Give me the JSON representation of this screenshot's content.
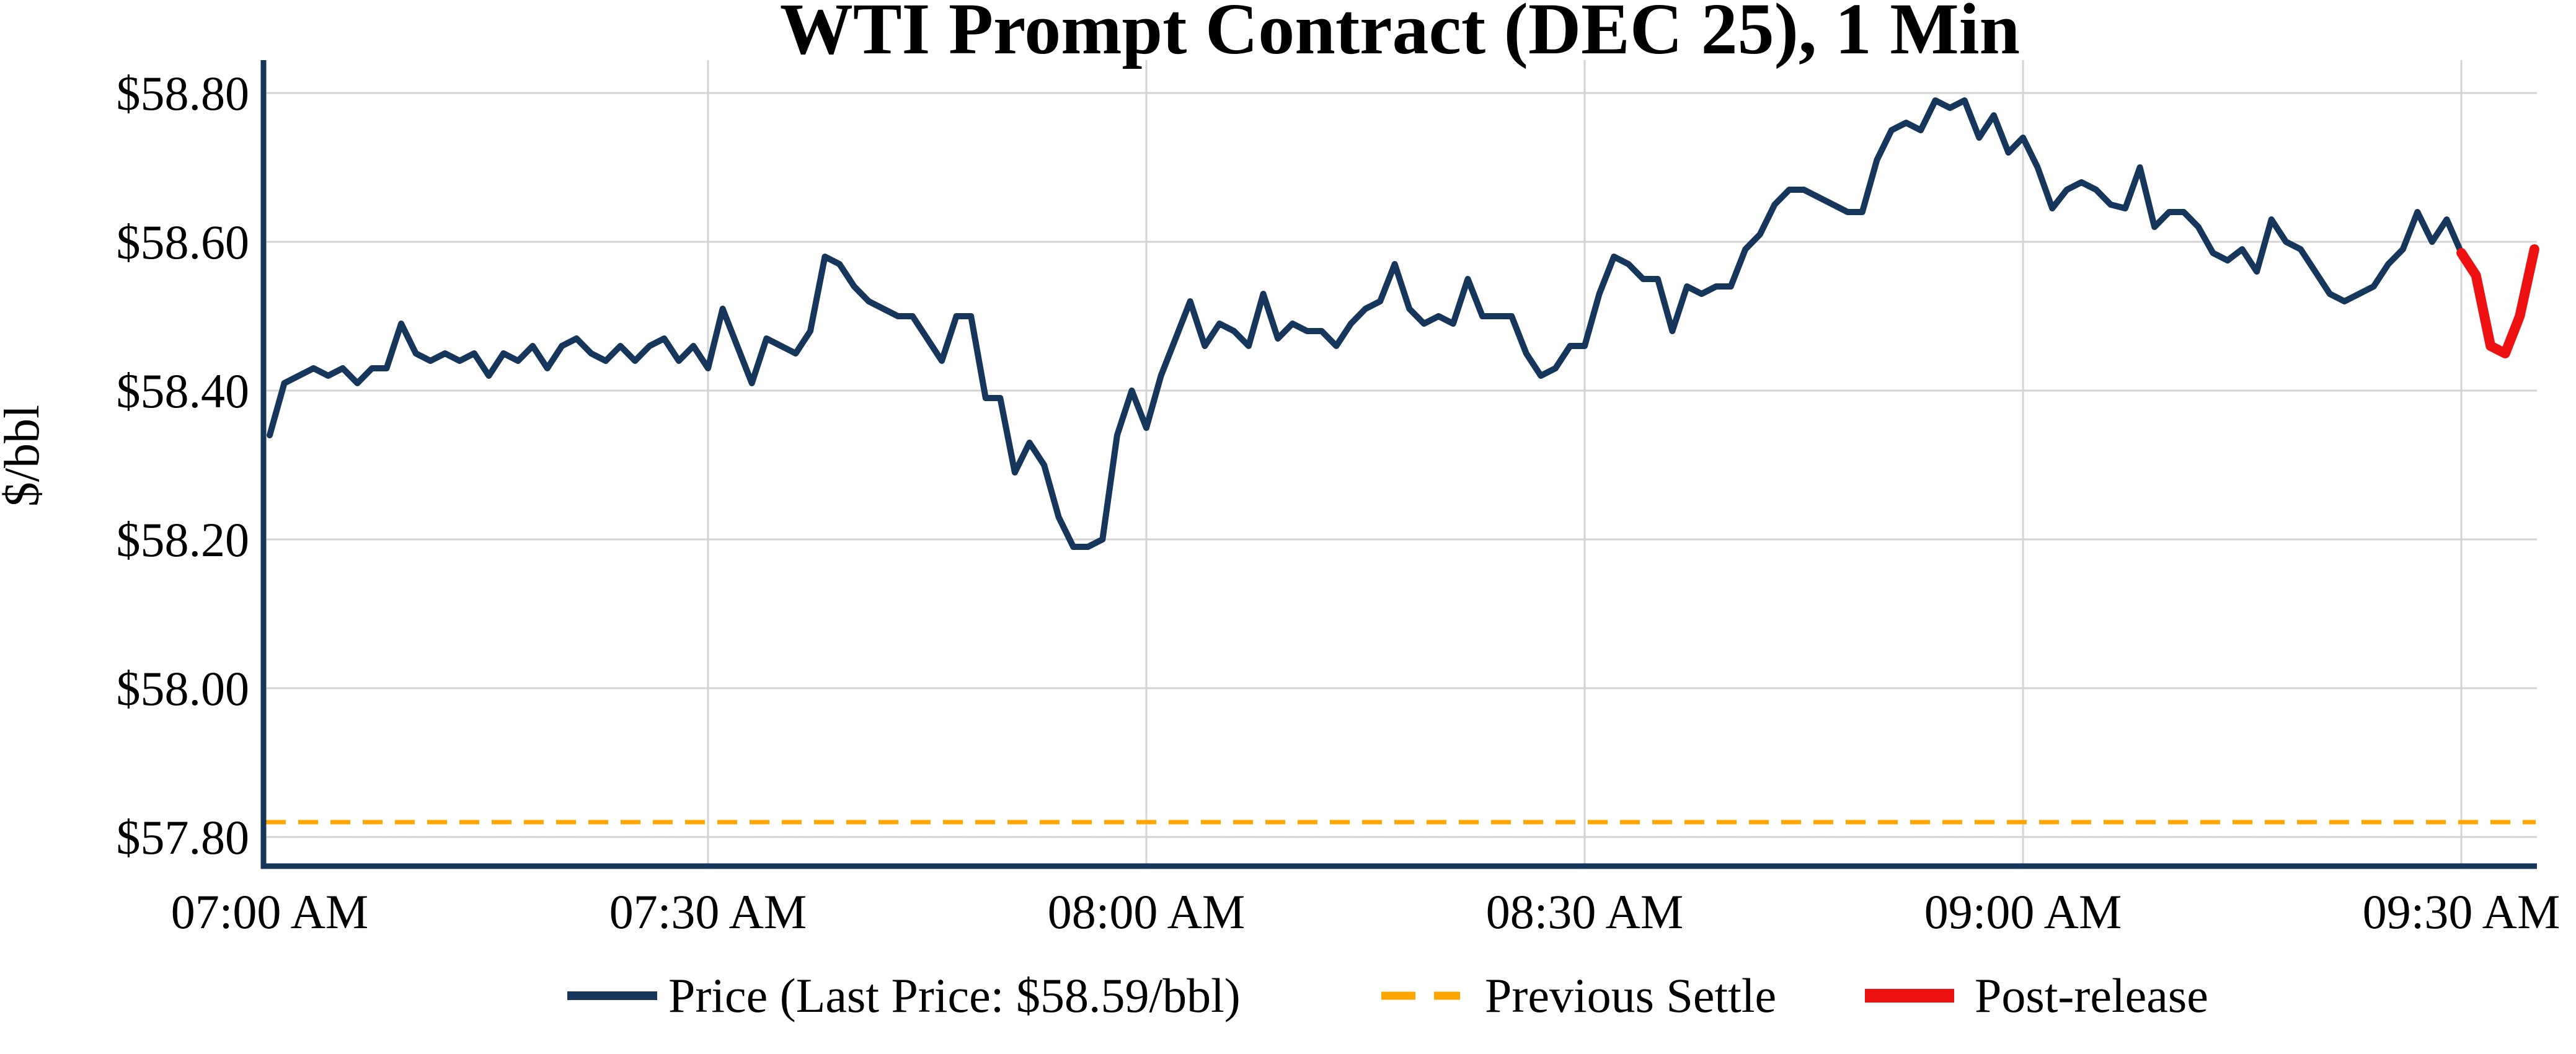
{
  "title": "WTI Prompt Contract (DEC 25), 1 Min",
  "y_axis": {
    "label": "$/bbl",
    "tick_labels": [
      "$58.80",
      "$58.60",
      "$58.40",
      "$58.20",
      "$58.00",
      "$57.80"
    ],
    "tick_values": [
      58.8,
      58.6,
      58.4,
      58.2,
      58.0,
      57.8
    ]
  },
  "x_axis": {
    "tick_labels": [
      "07:00 AM",
      "07:30 AM",
      "08:00 AM",
      "08:30 AM",
      "09:00 AM",
      "09:30 AM"
    ],
    "tick_minutes": [
      0,
      30,
      60,
      90,
      120,
      150
    ]
  },
  "legend": {
    "price_label": "Price (Last Price: $58.59/bbl)",
    "previous_settle_label": "Previous Settle",
    "post_release_label": "Post-release"
  },
  "last_price_display": "$58.59/bbl",
  "colors": {
    "price": "#16365C",
    "previous_settle": "#FFA500",
    "post_release": "#EE1111",
    "grid": "#D4D4D4",
    "text": "#000000",
    "background": "#FFFFFF"
  },
  "chart_data": {
    "type": "line",
    "title": "WTI Prompt Contract (DEC 25), 1 Min",
    "xlabel": "",
    "ylabel": "$/bbl",
    "x_unit": "minutes after 07:00 AM",
    "x_range_minutes": [
      0,
      155
    ],
    "ylim": [
      57.76,
      58.85
    ],
    "grid": true,
    "legend_position": "bottom",
    "previous_settle_value": 57.82,
    "series": [
      {
        "name": "Price",
        "style": "solid",
        "color": "#16365C",
        "start_minute": 0,
        "step_minutes": 1,
        "values": [
          58.34,
          58.41,
          58.42,
          58.43,
          58.42,
          58.43,
          58.41,
          58.43,
          58.43,
          58.49,
          58.45,
          58.44,
          58.45,
          58.44,
          58.45,
          58.42,
          58.45,
          58.44,
          58.46,
          58.43,
          58.46,
          58.47,
          58.45,
          58.44,
          58.46,
          58.44,
          58.46,
          58.47,
          58.44,
          58.46,
          58.43,
          58.51,
          58.46,
          58.41,
          58.47,
          58.46,
          58.45,
          58.48,
          58.58,
          58.57,
          58.54,
          58.52,
          58.51,
          58.5,
          58.5,
          58.47,
          58.44,
          58.5,
          58.5,
          58.39,
          58.39,
          58.29,
          58.33,
          58.3,
          58.23,
          58.19,
          58.19,
          58.2,
          58.34,
          58.4,
          58.35,
          58.42,
          58.47,
          58.52,
          58.46,
          58.49,
          58.48,
          58.46,
          58.53,
          58.47,
          58.49,
          58.48,
          58.48,
          58.46,
          58.49,
          58.51,
          58.52,
          58.57,
          58.51,
          58.49,
          58.5,
          58.49,
          58.55,
          58.5,
          58.5,
          58.5,
          58.45,
          58.42,
          58.43,
          58.46,
          58.46,
          58.53,
          58.58,
          58.57,
          58.55,
          58.55,
          58.48,
          58.54,
          58.53,
          58.54,
          58.54,
          58.59,
          58.61,
          58.65,
          58.67,
          58.67,
          58.66,
          58.65,
          58.64,
          58.64,
          58.71,
          58.75,
          58.76,
          58.75,
          58.79,
          58.78,
          58.79,
          58.74,
          58.77,
          58.72,
          58.74,
          58.7,
          58.645,
          58.67,
          58.68,
          58.67,
          58.65,
          58.645,
          58.7,
          58.62,
          58.64,
          58.64,
          58.62,
          58.585,
          58.575,
          58.59,
          58.56,
          58.63,
          58.6,
          58.59,
          58.56,
          58.53,
          58.52,
          58.53,
          58.54,
          58.57,
          58.59,
          58.64,
          58.6,
          58.63,
          58.585
        ]
      },
      {
        "name": "Post-release",
        "style": "solid",
        "color": "#EE1111",
        "start_minute": 150,
        "step_minutes": 1,
        "values": [
          58.585,
          58.555,
          58.46,
          58.45,
          58.5,
          58.59
        ]
      },
      {
        "name": "Previous Settle",
        "style": "dashed-horizontal",
        "color": "#FFA500",
        "value": 57.82
      }
    ]
  }
}
